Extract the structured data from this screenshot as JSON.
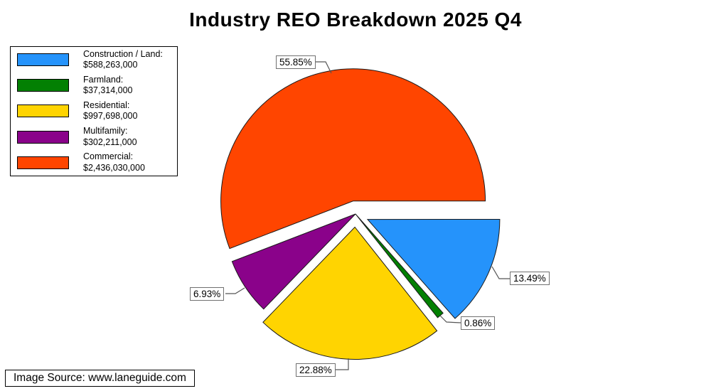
{
  "page": {
    "title": "Industry REO Breakdown 2025 Q4",
    "source_note": "Image Source: www.laneguide.com"
  },
  "chart_data": {
    "type": "pie",
    "title": "Industry REO Breakdown 2025 Q4",
    "start_angle_deg": 0,
    "direction": "counterclockwise",
    "legend_position": "top-left",
    "draw_order": [
      "Commercial",
      "Multifamily",
      "Residential",
      "Farmland",
      "Construction / Land"
    ],
    "slices": [
      {
        "label": "Construction / Land",
        "label_display": "Construction / Land:",
        "value": 588263000,
        "value_display": "$588,263,000",
        "percent": 13.49,
        "percent_label": "13.49%",
        "color": "#2593FB",
        "exploded": true
      },
      {
        "label": "Farmland",
        "label_display": "Farmland:",
        "value": 37314000,
        "value_display": "$37,314,000",
        "percent": 0.86,
        "percent_label": "0.86%",
        "color": "#038003",
        "exploded": false
      },
      {
        "label": "Residential",
        "label_display": "Residential:",
        "value": 997698000,
        "value_display": "$997,698,000",
        "percent": 22.88,
        "percent_label": "22.88%",
        "color": "#FFD401",
        "exploded": true
      },
      {
        "label": "Multifamily",
        "label_display": "Multifamily:",
        "value": 302211000,
        "value_display": "$302,211,000",
        "percent": 6.93,
        "percent_label": "6.93%",
        "color": "#8A028A",
        "exploded": false
      },
      {
        "label": "Commercial",
        "label_display": "Commercial:",
        "value": 2436030000,
        "value_display": "$2,436,030,000",
        "percent": 55.85,
        "percent_label": "55.85%",
        "color": "#FF4500",
        "exploded": true
      }
    ]
  }
}
